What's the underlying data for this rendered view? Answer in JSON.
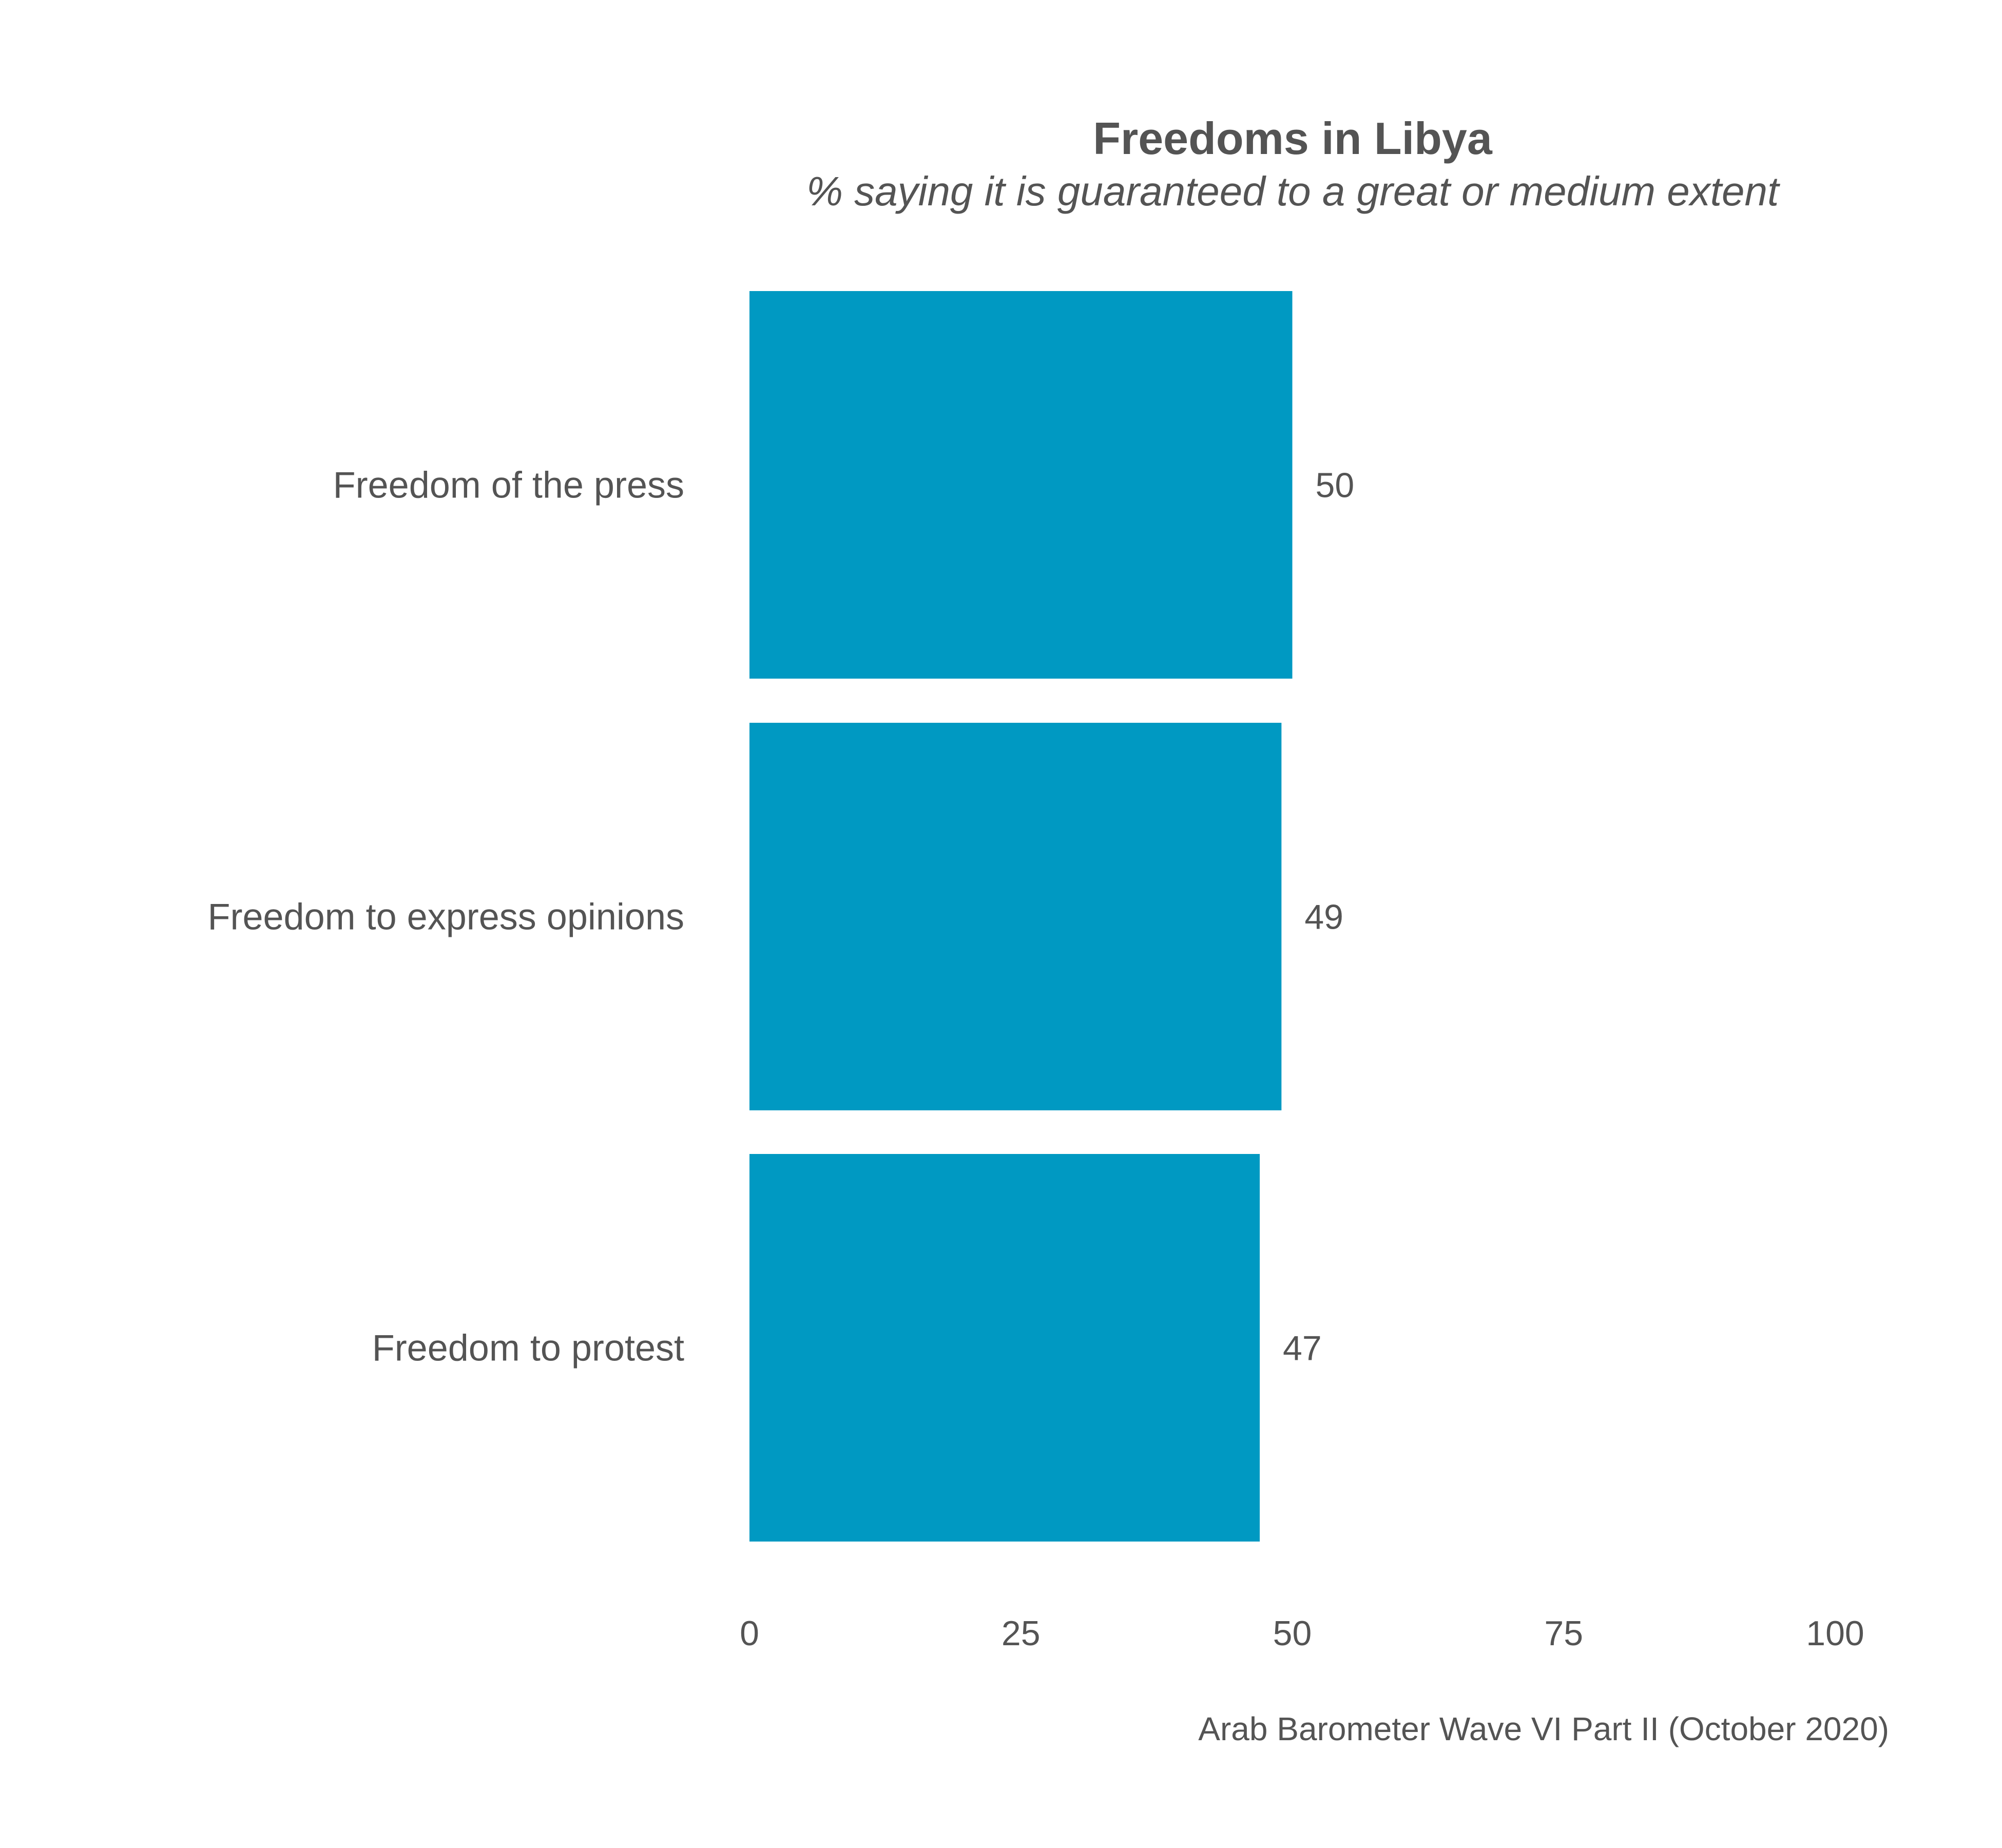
{
  "chart_data": {
    "type": "bar",
    "orientation": "horizontal",
    "title": "Freedoms in Libya",
    "subtitle": "% saying it is guaranteed to a great or medium extent",
    "categories": [
      "Freedom of the press",
      "Freedom to express opinions",
      "Freedom to protest"
    ],
    "values": [
      50,
      49,
      47
    ],
    "xlim": [
      0,
      100
    ],
    "xticks": [
      0,
      25,
      50,
      75,
      100
    ],
    "grid": false,
    "legend": "none",
    "bar_color": "#0099c2",
    "caption": "Arab Barometer Wave VI Part II (October 2020)"
  }
}
